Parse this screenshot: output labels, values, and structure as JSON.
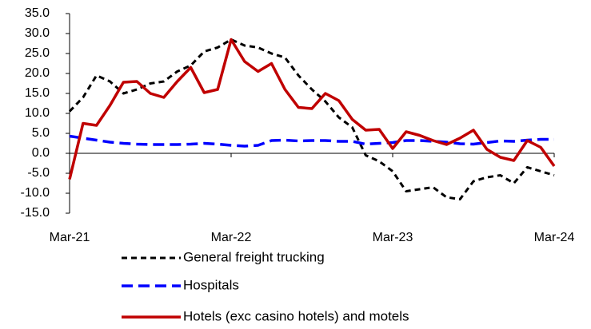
{
  "chart_data": {
    "type": "line",
    "categories": [
      "Mar-21",
      null,
      null,
      null,
      null,
      null,
      null,
      null,
      null,
      null,
      null,
      null,
      "Mar-22",
      null,
      null,
      null,
      null,
      null,
      null,
      null,
      null,
      null,
      null,
      null,
      "Mar-23",
      null,
      null,
      null,
      null,
      null,
      null,
      null,
      null,
      null,
      null,
      null,
      "Mar-24"
    ],
    "series": [
      {
        "name": "General freight trucking",
        "color": "#000000",
        "dashed": true,
        "values": [
          10.5,
          14,
          19.5,
          18,
          15,
          16,
          17.5,
          18,
          20.5,
          22,
          25.5,
          26.5,
          28.5,
          27,
          26.5,
          25,
          24,
          19.5,
          16,
          13,
          9,
          6.5,
          -0.5,
          -2,
          -4.5,
          -9.5,
          -9,
          -8.5,
          -11,
          -11.5,
          -7,
          -6,
          -5.5,
          -7.5,
          -3.5,
          -4.5,
          -5.5
        ]
      },
      {
        "name": "Hospitals",
        "color": "#0000ff",
        "dashed": true,
        "values": [
          4.3,
          3.8,
          3.3,
          2.8,
          2.5,
          2.3,
          2.2,
          2.2,
          2.2,
          2.3,
          2.5,
          2.3,
          2.0,
          1.8,
          2.0,
          3.2,
          3.3,
          3.1,
          3.2,
          3.2,
          3.0,
          3.0,
          2.3,
          2.5,
          2.7,
          3.2,
          3.2,
          3.0,
          2.8,
          2.4,
          2.3,
          2.7,
          3.1,
          3.0,
          3.3,
          3.5,
          3.5
        ]
      },
      {
        "name": "Hotels (exc casino hotels) and motels",
        "color": "#c00000",
        "dashed": false,
        "values": [
          -6.5,
          7.5,
          7,
          12,
          17.8,
          18,
          15,
          14,
          18,
          21.5,
          15.2,
          16,
          28.5,
          23,
          20.5,
          22.5,
          16,
          11.5,
          11.2,
          15,
          13.2,
          8.5,
          5.8,
          6,
          1.2,
          5.4,
          4.5,
          3.2,
          2.2,
          3.8,
          5.8,
          1,
          -1,
          -1.8,
          3.2,
          1.5,
          -3.2
        ]
      }
    ],
    "ylim": [
      -15,
      35
    ],
    "yticks": [
      {
        "value": -15,
        "label": "-15.0"
      },
      {
        "value": -10,
        "label": "-10.0"
      },
      {
        "value": -5,
        "label": "-5.0"
      },
      {
        "value": 0,
        "label": "0.0"
      },
      {
        "value": 5,
        "label": "5.0"
      },
      {
        "value": 10,
        "label": "10.0"
      },
      {
        "value": 15,
        "label": "15.0"
      },
      {
        "value": 20,
        "label": "20.0"
      },
      {
        "value": 25,
        "label": "25.0"
      },
      {
        "value": 30,
        "label": "30.0"
      },
      {
        "value": 35,
        "label": "35.0"
      }
    ],
    "grid": false
  }
}
